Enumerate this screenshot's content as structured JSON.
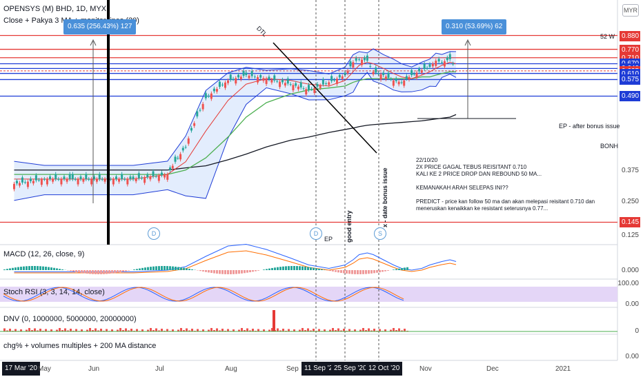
{
  "header": {
    "symbol_line": "OPENSYS (M) BHD, 1D, MYX",
    "study_line": "Close + Pakya 3 MA + monitor lines (20)"
  },
  "currency": "MYR",
  "panes": {
    "macd": "MACD (12, 26, close, 9)",
    "stoch": "Stoch RSI (3, 3, 14, 14, close)",
    "dnv": "DNV (0, 1000000, 5000000, 20000000)",
    "chg": "chg% + volumes multiples + 200 MA distance"
  },
  "measure_boxes": [
    {
      "text": "0.635 (256.43%) 127"
    },
    {
      "text": "0.310 (53.69%) 62"
    }
  ],
  "line_labels": {
    "w52": "52 W",
    "ep_after": "EP - after bonus issue",
    "bonh": "BONH",
    "dtl": "DTL",
    "ep": "EP",
    "good_entry": "good entry",
    "ex_date": "x - date bonus issue"
  },
  "dividend_markers": [
    "D",
    "D",
    "S"
  ],
  "note": "22/10/20\n2X PRICE GAGAL TEBUS REISITANT 0.710\nKALI KE 2 PRICE DROP DAN REBOUND 50 MA...\n\nKEMANAKAH ARAH SELEPAS INI??\n\nPREDICT - price kan follow 50 ma dan akan melepasi reisitant 0.710 dan\nmeneruskan kenaikkan ke resistant seterusnya 0.77...",
  "price_tags": [
    {
      "value": "0.880",
      "color": "#e53935"
    },
    {
      "value": "0.770",
      "color": "#e53935"
    },
    {
      "value": "0.710",
      "color": "#e53935"
    },
    {
      "value": "0.670",
      "color": "#1e3cd6"
    },
    {
      "value": "0.640",
      "color": "#1e3cd6"
    },
    {
      "value": "0.625",
      "color": "#e53935"
    },
    {
      "value": "0.610",
      "color": "#1e3cd6"
    },
    {
      "value": "0.575",
      "color": "#1e3cd6"
    },
    {
      "value": "0.490",
      "color": "#1e3cd6"
    },
    {
      "value": "0.145",
      "color": "#e53935"
    }
  ],
  "price_ticks": [
    "0.375",
    "0.250",
    "0.125"
  ],
  "indicator_ticks": {
    "macd": "0.000",
    "stoch_hi": "100.00",
    "stoch_lo": "0.00",
    "dnv": "0",
    "chg": "0.00"
  },
  "x_axis": [
    {
      "text": "17 Mar '20",
      "highlight": true
    },
    {
      "text": "May",
      "highlight": false
    },
    {
      "text": "Jun",
      "highlight": false
    },
    {
      "text": "Jul",
      "highlight": false
    },
    {
      "text": "Aug",
      "highlight": false
    },
    {
      "text": "Sep",
      "highlight": false
    },
    {
      "text": "11 Sep '20",
      "highlight": true
    },
    {
      "text": "25 Sep '20",
      "highlight": true
    },
    {
      "text": "12 Oct '20",
      "highlight": true
    },
    {
      "text": "Nov",
      "highlight": false
    },
    {
      "text": "Dec",
      "highlight": false
    },
    {
      "text": "2021",
      "highlight": false
    }
  ],
  "chart_data": {
    "type": "line",
    "price": {
      "dates": [
        "2020-03-17",
        "2020-04-01",
        "2020-04-15",
        "2020-05-01",
        "2020-05-15",
        "2020-06-01",
        "2020-06-10",
        "2020-06-20",
        "2020-07-01",
        "2020-07-10",
        "2020-07-20",
        "2020-08-01",
        "2020-08-10",
        "2020-08-20",
        "2020-08-28",
        "2020-09-01",
        "2020-09-04",
        "2020-09-08",
        "2020-09-11",
        "2020-09-16",
        "2020-09-21",
        "2020-09-25",
        "2020-09-30",
        "2020-10-05",
        "2020-10-09",
        "2020-10-12",
        "2020-10-15",
        "2020-10-19",
        "2020-10-22"
      ],
      "close": [
        0.21,
        0.22,
        0.22,
        0.22,
        0.22,
        0.23,
        0.3,
        0.48,
        0.57,
        0.6,
        0.58,
        0.55,
        0.52,
        0.56,
        0.6,
        0.68,
        0.7,
        0.69,
        0.62,
        0.6,
        0.57,
        0.56,
        0.6,
        0.63,
        0.65,
        0.69,
        0.68,
        0.7,
        0.64
      ],
      "ma20": [
        0.22,
        0.22,
        0.22,
        0.22,
        0.22,
        0.23,
        0.26,
        0.35,
        0.47,
        0.55,
        0.58,
        0.57,
        0.55,
        0.54,
        0.57,
        0.62,
        0.66,
        0.68,
        0.67,
        0.64,
        0.61,
        0.59,
        0.58,
        0.6,
        0.62,
        0.64,
        0.66,
        0.68,
        0.67
      ],
      "ma50": [
        0.23,
        0.23,
        0.23,
        0.23,
        0.23,
        0.23,
        0.24,
        0.27,
        0.33,
        0.4,
        0.46,
        0.5,
        0.52,
        0.53,
        0.54,
        0.56,
        0.57,
        0.58,
        0.58,
        0.58,
        0.58,
        0.58,
        0.58,
        0.59,
        0.59,
        0.6,
        0.61,
        0.62,
        0.62
      ],
      "ma200": [
        0.24,
        0.24,
        0.24,
        0.24,
        0.24,
        0.24,
        0.245,
        0.25,
        0.265,
        0.28,
        0.3,
        0.32,
        0.33,
        0.345,
        0.355,
        0.36,
        0.365,
        0.37,
        0.372,
        0.375,
        0.378,
        0.38,
        0.383,
        0.386,
        0.39,
        0.393,
        0.396,
        0.4,
        0.41
      ]
    },
    "horizontal_levels": [
      0.88,
      0.77,
      0.71,
      0.67,
      0.64,
      0.625,
      0.61,
      0.575,
      0.49,
      0.145
    ],
    "y_ticks": [
      0.375,
      0.25,
      0.125
    ],
    "measurements": [
      {
        "change": 0.635,
        "percent": 256.43,
        "bars": 127
      },
      {
        "change": 0.31,
        "percent": 53.69,
        "bars": 62
      }
    ],
    "xlabel": "",
    "ylabel": ""
  }
}
